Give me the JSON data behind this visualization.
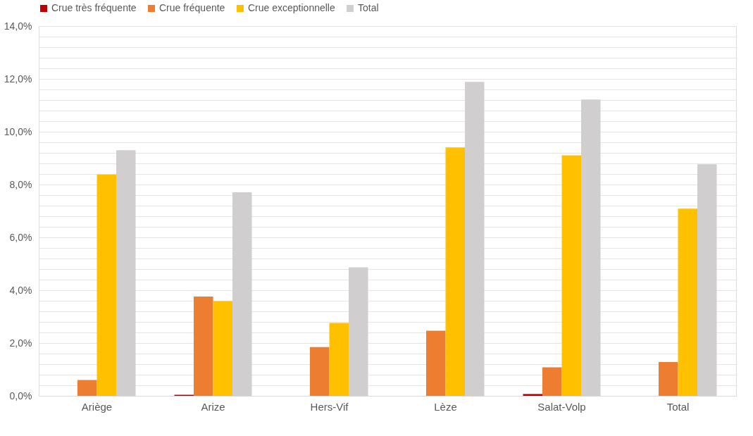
{
  "chart_data": {
    "type": "bar",
    "categories": [
      "Ariège",
      "Arize",
      "Hers-Vif",
      "Lèze",
      "Salat-Volp",
      "Total"
    ],
    "series": [
      {
        "name": "Crue très fréquente",
        "color": "#c00000",
        "values": [
          0,
          0.04,
          0,
          0,
          0.07,
          0
        ]
      },
      {
        "name": "Crue fréquente",
        "color": "#ed7d31",
        "values": [
          0.6,
          3.76,
          1.85,
          2.47,
          1.08,
          1.28
        ]
      },
      {
        "name": "Crue exceptionnelle",
        "color": "#ffc000",
        "values": [
          8.38,
          3.59,
          2.76,
          9.41,
          9.11,
          7.09
        ]
      },
      {
        "name": "Total",
        "color": "#d0cece",
        "values": [
          9.3,
          7.71,
          4.87,
          11.89,
          11.22,
          8.77
        ]
      }
    ],
    "ylim": [
      0,
      14
    ],
    "yticks": [
      {
        "value": 0,
        "label": "0,0%"
      },
      {
        "value": 0.4,
        "label": null
      },
      {
        "value": 0.8,
        "label": null
      },
      {
        "value": 1.2,
        "label": null
      },
      {
        "value": 1.6,
        "label": null
      },
      {
        "value": 2,
        "label": "2,0%"
      },
      {
        "value": 2.4,
        "label": null
      },
      {
        "value": 2.8,
        "label": null
      },
      {
        "value": 3.2,
        "label": null
      },
      {
        "value": 3.6,
        "label": null
      },
      {
        "value": 4,
        "label": "4,0%"
      },
      {
        "value": 4.4,
        "label": null
      },
      {
        "value": 4.8,
        "label": null
      },
      {
        "value": 5.2,
        "label": null
      },
      {
        "value": 5.6,
        "label": null
      },
      {
        "value": 6,
        "label": "6,0%"
      },
      {
        "value": 6.4,
        "label": null
      },
      {
        "value": 6.8,
        "label": null
      },
      {
        "value": 7.2,
        "label": null
      },
      {
        "value": 7.6,
        "label": null
      },
      {
        "value": 8,
        "label": "8,0%"
      },
      {
        "value": 8.4,
        "label": null
      },
      {
        "value": 8.8,
        "label": null
      },
      {
        "value": 9.2,
        "label": null
      },
      {
        "value": 9.6,
        "label": null
      },
      {
        "value": 10,
        "label": "10,0%"
      },
      {
        "value": 10.4,
        "label": null
      },
      {
        "value": 10.8,
        "label": null
      },
      {
        "value": 11.2,
        "label": null
      },
      {
        "value": 11.6,
        "label": null
      },
      {
        "value": 12,
        "label": "12,0%"
      },
      {
        "value": 12.4,
        "label": null
      },
      {
        "value": 12.8,
        "label": null
      },
      {
        "value": 13.2,
        "label": null
      },
      {
        "value": 13.6,
        "label": null
      },
      {
        "value": 14,
        "label": "14,0%"
      }
    ],
    "grid": true,
    "legend": "top"
  }
}
